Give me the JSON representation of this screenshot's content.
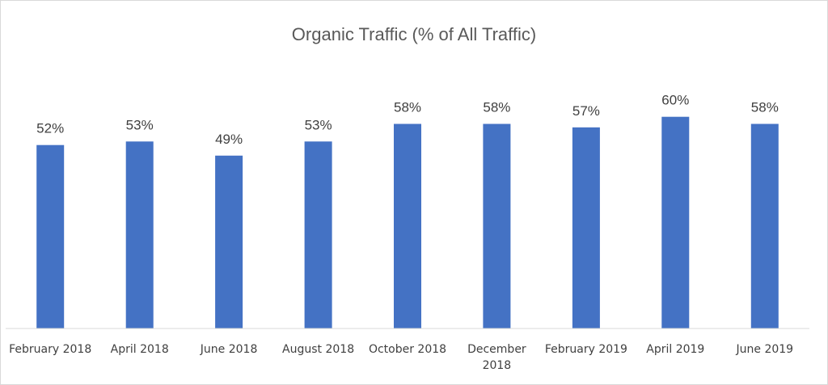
{
  "chart_data": {
    "type": "bar",
    "title": "Organic Traffic (% of All Traffic)",
    "categories": [
      [
        "February 2018"
      ],
      [
        "April 2018"
      ],
      [
        "June 2018"
      ],
      [
        "August 2018"
      ],
      [
        "October 2018"
      ],
      [
        "December",
        "2018"
      ],
      [
        "February 2019"
      ],
      [
        "April 2019"
      ],
      [
        "June 2019"
      ]
    ],
    "values": [
      52,
      53,
      49,
      53,
      58,
      58,
      57,
      60,
      58
    ],
    "data_labels": [
      "52%",
      "53%",
      "49%",
      "53%",
      "58%",
      "58%",
      "57%",
      "60%",
      "58%"
    ],
    "value_unit": "%",
    "ylim": [
      0,
      70
    ],
    "grid": false,
    "legend": "none",
    "bar_color": "#4472C4",
    "axis_color": "#d9d9d9"
  }
}
